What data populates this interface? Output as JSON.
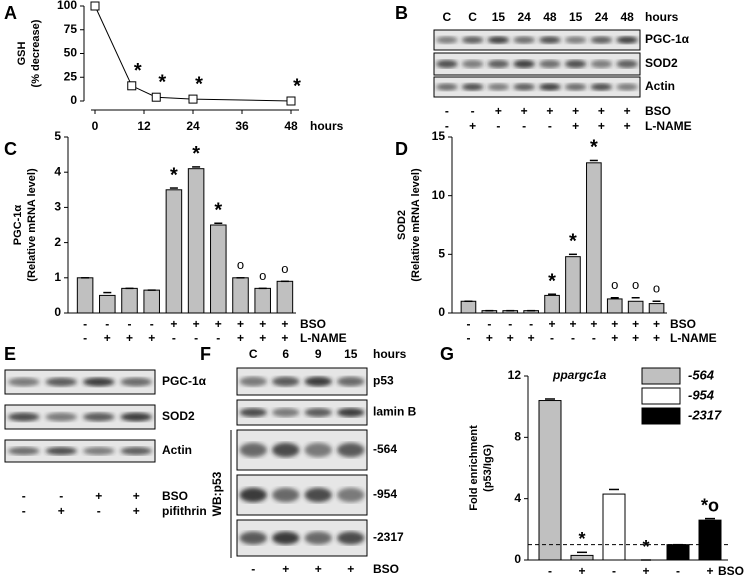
{
  "panels": [
    "A",
    "B",
    "C",
    "D",
    "E",
    "F",
    "G"
  ],
  "chart_data": [
    {
      "type": "line",
      "ylabel": [
        "GSH",
        "(% decrease)"
      ],
      "xlabel": "hours",
      "x": [
        0,
        9,
        15,
        24,
        48
      ],
      "values": [
        100,
        16,
        4,
        2,
        0
      ],
      "annotations": [
        null,
        "*",
        "*",
        "*",
        "*"
      ],
      "xlim": [
        0,
        48
      ],
      "xticks": [
        0,
        12,
        24,
        36,
        48
      ],
      "ylim": [
        0,
        100
      ],
      "yticks": [
        0,
        25,
        50,
        75,
        100
      ],
      "color": "#000000"
    },
    {
      "type": "bar",
      "ylabel": [
        "PGC-1α",
        "(Relative mRNA level)"
      ],
      "values": [
        1,
        0.5,
        0.7,
        0.65,
        3.5,
        4.1,
        2.5,
        1.0,
        0.7,
        0.9
      ],
      "errors": [
        0,
        0.08,
        0,
        0,
        0.05,
        0.05,
        0.05,
        0,
        0,
        0
      ],
      "annotations": [
        null,
        null,
        null,
        null,
        "*",
        "*",
        "*",
        "o",
        "o",
        "o"
      ],
      "ylim": [
        0,
        5
      ],
      "yticks": [
        0,
        1,
        2,
        3,
        4,
        5
      ],
      "color": "#c0c0c0",
      "treatments": [
        {
          "name": "BSO",
          "signs": [
            "-",
            "-",
            "-",
            "-",
            "+",
            "+",
            "+",
            "+",
            "+",
            "+"
          ]
        },
        {
          "name": "L-NAME",
          "signs": [
            "-",
            "+",
            "+",
            "+",
            "-",
            "-",
            "-",
            "+",
            "+",
            "+"
          ]
        }
      ]
    },
    {
      "type": "bar",
      "ylabel": [
        "SOD2",
        "(Relative mRNA level)"
      ],
      "values": [
        1,
        0.2,
        0.2,
        0.2,
        1.5,
        4.8,
        12.8,
        1.2,
        1.0,
        0.8
      ],
      "errors": [
        0,
        0,
        0,
        0,
        0.1,
        0.2,
        0.2,
        0.1,
        0.3,
        0.2
      ],
      "annotations": [
        null,
        null,
        null,
        null,
        "*",
        "*",
        "*",
        "o",
        "o",
        "o"
      ],
      "ylim": [
        0,
        15
      ],
      "yticks": [
        0,
        5,
        10,
        15
      ],
      "color": "#c0c0c0",
      "treatments": [
        {
          "name": "BSO",
          "signs": [
            "-",
            "-",
            "-",
            "-",
            "+",
            "+",
            "+",
            "+",
            "+",
            "+"
          ]
        },
        {
          "name": "L-NAME",
          "signs": [
            "-",
            "+",
            "+",
            "+",
            "-",
            "-",
            "-",
            "+",
            "+",
            "+"
          ]
        }
      ]
    },
    {
      "type": "grouped-bar",
      "subtitle": "ppargc1a",
      "ylabel": [
        "Fold enrichment",
        "(p53/IgG)"
      ],
      "series": [
        {
          "name": "-564",
          "color": "#c0c0c0",
          "values": [
            10.4,
            0.3
          ],
          "errors": [
            0.1,
            0.2
          ],
          "annotations": [
            null,
            "*"
          ]
        },
        {
          "name": "-954",
          "color": "#ffffff",
          "values": [
            4.3,
            0
          ],
          "errors": [
            0.3,
            0
          ],
          "annotations": [
            null,
            "*"
          ]
        },
        {
          "name": "-2317",
          "color": "#000000",
          "values": [
            1,
            2.6
          ],
          "errors": [
            0,
            0.1
          ],
          "annotations": [
            null,
            "*o"
          ]
        }
      ],
      "reference_line": 1,
      "ylim": [
        0,
        12
      ],
      "yticks": [
        0,
        4,
        8,
        12
      ],
      "treatments": [
        {
          "name": "BSO",
          "signs": [
            "-",
            "+",
            "-",
            "+",
            "-",
            "+"
          ]
        }
      ]
    }
  ],
  "blots": {
    "B": {
      "lanes": [
        "C",
        "C",
        "15",
        "24",
        "48",
        "15",
        "24",
        "48"
      ],
      "unit": "hours",
      "rows": [
        "PGC-1α",
        "SOD2",
        "Actin"
      ],
      "treatments": [
        {
          "name": "BSO",
          "signs": [
            "-",
            "-",
            "+",
            "+",
            "+",
            "+",
            "+",
            "+"
          ]
        },
        {
          "name": "L-NAME",
          "signs": [
            "-",
            "+",
            "-",
            "-",
            "-",
            "+",
            "+",
            "+"
          ]
        }
      ]
    },
    "E": {
      "rows": [
        "PGC-1α",
        "SOD2",
        "Actin"
      ],
      "treatments": [
        {
          "name": "BSO",
          "signs": [
            "-",
            "-",
            "+",
            "+"
          ]
        },
        {
          "name": "pifithrin",
          "signs": [
            "-",
            "+",
            "-",
            "+"
          ]
        }
      ]
    },
    "F": {
      "lanes": [
        "C",
        "6",
        "9",
        "15"
      ],
      "unit": "hours",
      "rows": [
        "p53",
        "lamin B",
        "-564",
        "-954",
        "-2317"
      ],
      "side_label": "WB:p53",
      "treatments": [
        {
          "name": "BSO",
          "signs": [
            "-",
            "+",
            "+",
            "+"
          ]
        }
      ]
    }
  }
}
